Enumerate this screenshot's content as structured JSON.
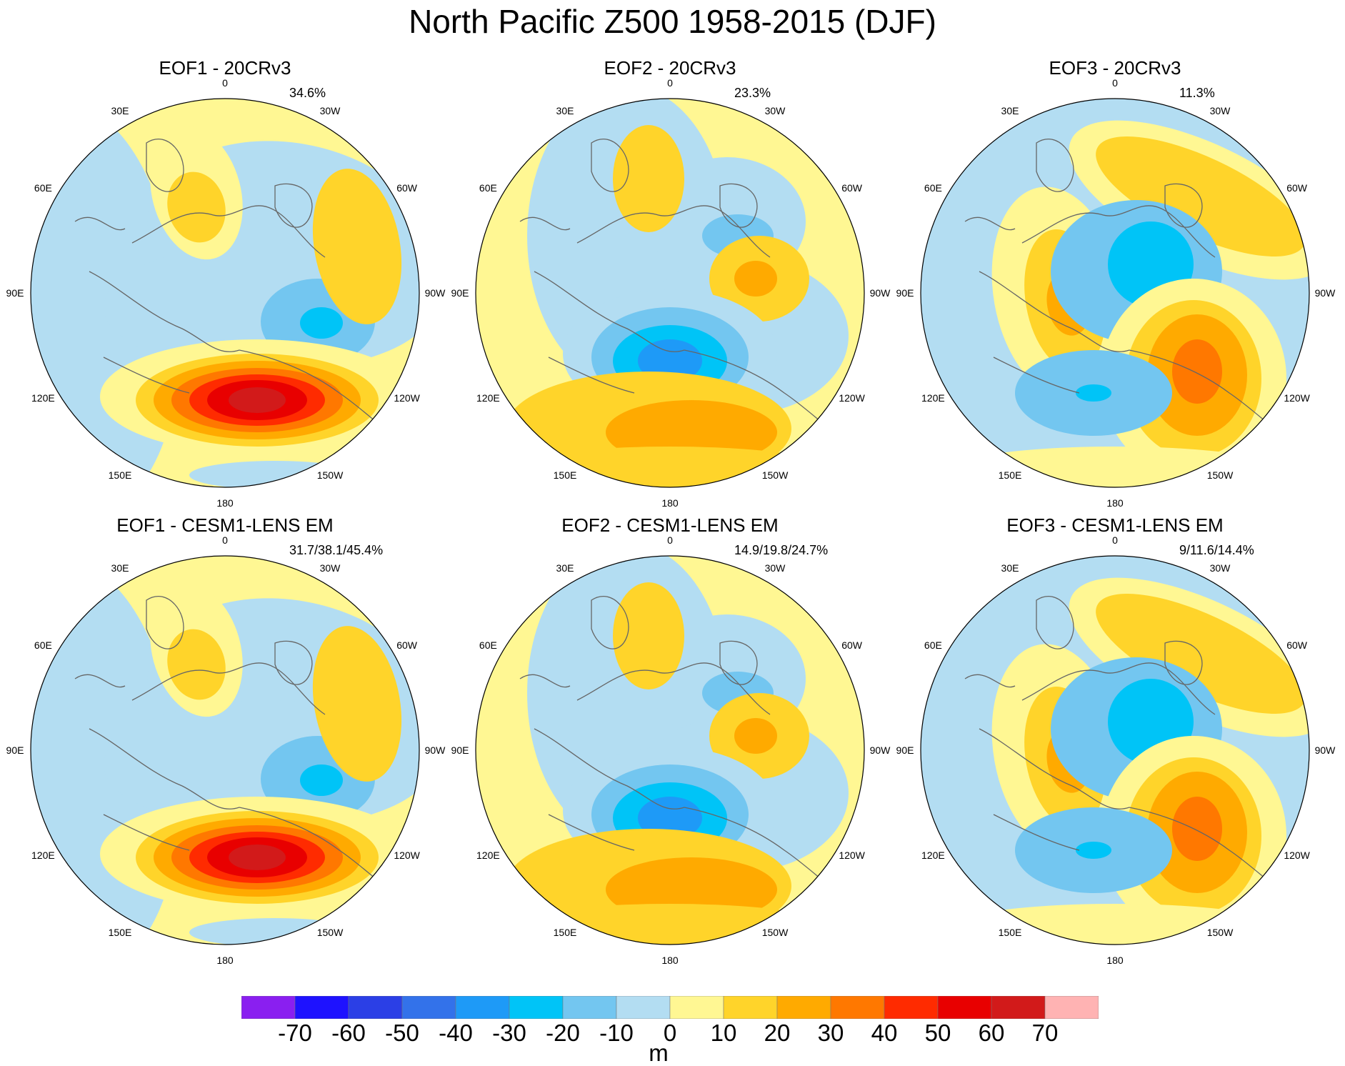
{
  "title": "North Pacific Z500 1958-2015 (DJF)",
  "panels": [
    {
      "title": "EOF1 - 20CRv3",
      "percent": "34.6%",
      "pattern": "eof1"
    },
    {
      "title": "EOF2 - 20CRv3",
      "percent": "23.3%",
      "pattern": "eof2"
    },
    {
      "title": "EOF3 - 20CRv3",
      "percent": "11.3%",
      "pattern": "eof3"
    },
    {
      "title": "EOF1 - CESM1-LENS EM",
      "percent": "31.7/38.1/45.4%",
      "pattern": "eof1"
    },
    {
      "title": "EOF2 - CESM1-LENS EM",
      "percent": "14.9/19.8/24.7%",
      "pattern": "eof2"
    },
    {
      "title": "EOF3 - CESM1-LENS EM",
      "percent": "9/11.6/14.4%",
      "pattern": "eof3"
    }
  ],
  "longitude_labels": {
    "lon0": "0",
    "lon30w": "30W",
    "lon60w": "60W",
    "lon90w": "90W",
    "lon120w": "120W",
    "lon150w": "150W",
    "lon180": "180",
    "lon150e": "150E",
    "lon120e": "120E",
    "lon90e": "90E",
    "lon60e": "60E",
    "lon30e": "30E"
  },
  "colorbar": {
    "unit": "m",
    "ticks": [
      "-70",
      "-60",
      "-50",
      "-40",
      "-30",
      "-20",
      "-10",
      "0",
      "10",
      "20",
      "30",
      "40",
      "50",
      "60",
      "70"
    ],
    "colors": [
      "#8a1ff0",
      "#1e12ff",
      "#2b3fe6",
      "#3372ea",
      "#1e9af7",
      "#00c4f7",
      "#73c6f0",
      "#b3ddf2",
      "#fff793",
      "#ffd42a",
      "#ffaa00",
      "#ff7800",
      "#ff2b00",
      "#e80000",
      "#d21a1a",
      "#ffb3b3"
    ]
  }
}
